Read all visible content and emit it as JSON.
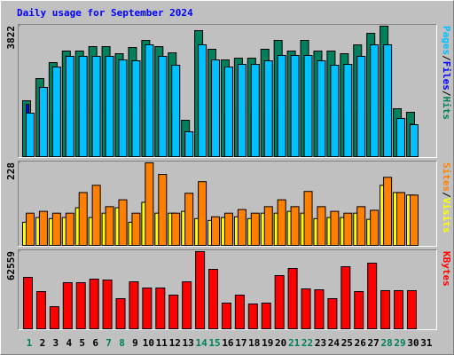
{
  "title": "Daily usage for September 2024",
  "chart_data": [
    {
      "type": "bar",
      "legend_separator": "/",
      "ylim": [
        0,
        3822
      ],
      "yticks": [
        3822
      ],
      "series": [
        {
          "name": "Hits",
          "color": "#00805c",
          "values": [
            1638,
            2288,
            2756,
            3094,
            3094,
            3224,
            3224,
            3016,
            3198,
            3406,
            3224,
            3042,
            1066,
            3692,
            3146,
            2834,
            2886,
            2886,
            3146,
            3406,
            3094,
            3406,
            3094,
            3094,
            3016,
            3276,
            3614,
            3822,
            1404,
            1300,
            null
          ]
        },
        {
          "name": "Files",
          "color": "#0000ff",
          "values": [
            1534,
            1170,
            1300,
            1350,
            1350,
            1380,
            1380,
            1300,
            1350,
            1600,
            1380,
            1300,
            700,
            1600,
            1300,
            1250,
            1300,
            1300,
            1350,
            1400,
            1350,
            1450,
            1350,
            1300,
            1300,
            1350,
            1450,
            1500,
            1100,
            950,
            null
          ]
        },
        {
          "name": "Pages",
          "color": "#00c0ff",
          "values": [
            1274,
            2028,
            2626,
            2938,
            2938,
            2938,
            2938,
            2834,
            2808,
            3276,
            2938,
            2678,
            728,
            3276,
            2834,
            2626,
            2704,
            2704,
            2808,
            2964,
            2964,
            2964,
            2808,
            2678,
            2704,
            2938,
            3276,
            3276,
            1118,
            936,
            null
          ]
        }
      ]
    },
    {
      "type": "bar",
      "legend_separator": "/",
      "ylim": [
        0,
        228
      ],
      "yticks": [
        228
      ],
      "series": [
        {
          "name": "Visits",
          "color": "#ffff00",
          "values": [
            64,
            77,
            74,
            77,
            104,
            77,
            89,
            104,
            64,
            119,
            89,
            89,
            94,
            74,
            69,
            77,
            79,
            74,
            89,
            89,
            94,
            89,
            74,
            77,
            77,
            89,
            72,
            166,
            146,
            139,
            null
          ]
        },
        {
          "name": "Sites",
          "color": "#ff8000",
          "values": [
            89,
            94,
            89,
            89,
            146,
            166,
            107,
            126,
            89,
            228,
            196,
            89,
            144,
            176,
            79,
            89,
            99,
            89,
            107,
            126,
            107,
            149,
            107,
            94,
            89,
            107,
            97,
            188,
            146,
            139,
            null
          ]
        }
      ]
    },
    {
      "type": "bar",
      "ylim": [
        0,
        62559
      ],
      "yticks": [
        62559
      ],
      "categories": [
        "1",
        "2",
        "3",
        "4",
        "5",
        "6",
        "7",
        "8",
        "9",
        "10",
        "11",
        "12",
        "13",
        "14",
        "15",
        "16",
        "17",
        "18",
        "19",
        "20",
        "21",
        "22",
        "23",
        "24",
        "25",
        "26",
        "27",
        "28",
        "29",
        "30",
        "31"
      ],
      "category_colors": [
        "#00805c",
        "#000000",
        "#000000",
        "#000000",
        "#000000",
        "#000000",
        "#00805c",
        "#00805c",
        "#000000",
        "#000000",
        "#000000",
        "#000000",
        "#000000",
        "#00805c",
        "#00805c",
        "#000000",
        "#000000",
        "#000000",
        "#000000",
        "#000000",
        "#00805c",
        "#00805c",
        "#000000",
        "#000000",
        "#000000",
        "#000000",
        "#000000",
        "#00805c",
        "#00805c",
        "#000000",
        "#000000"
      ],
      "series": [
        {
          "name": "KBytes",
          "color": "#ff0000",
          "values": [
            41702,
            30198,
            17975,
            37388,
            37388,
            40264,
            39545,
            24446,
            38107,
            33074,
            33074,
            27322,
            38107,
            62559,
            48173,
            20851,
            27322,
            20132,
            20851,
            43140,
            48892,
            32355,
            31636,
            24446,
            50330,
            30198,
            53206,
            30917,
            30917,
            30917,
            null
          ]
        }
      ]
    }
  ]
}
